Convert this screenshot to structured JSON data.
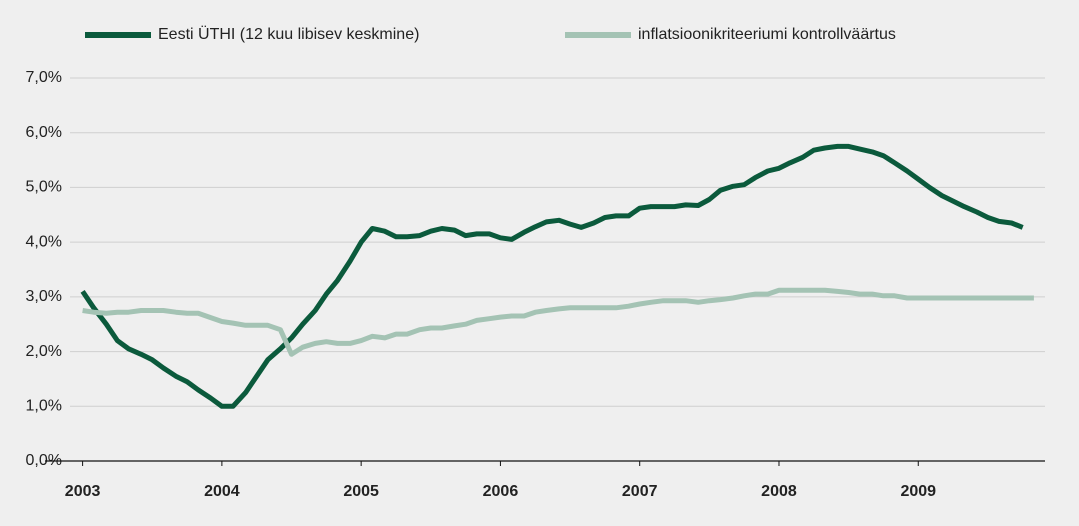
{
  "chart_data": {
    "type": "line",
    "x": [
      2003,
      2003.08,
      2003.17,
      2003.25,
      2003.33,
      2003.42,
      2003.5,
      2003.58,
      2003.67,
      2003.75,
      2003.83,
      2003.92,
      2004,
      2004.08,
      2004.17,
      2004.25,
      2004.33,
      2004.42,
      2004.5,
      2004.58,
      2004.67,
      2004.75,
      2004.83,
      2004.92,
      2005,
      2005.08,
      2005.17,
      2005.25,
      2005.33,
      2005.42,
      2005.5,
      2005.58,
      2005.67,
      2005.75,
      2005.83,
      2005.92,
      2006,
      2006.08,
      2006.17,
      2006.25,
      2006.33,
      2006.42,
      2006.5,
      2006.58,
      2006.67,
      2006.75,
      2006.83,
      2006.92,
      2007,
      2007.08,
      2007.17,
      2007.25,
      2007.33,
      2007.42,
      2007.5,
      2007.58,
      2007.67,
      2007.75,
      2007.83,
      2007.92,
      2008,
      2008.08,
      2008.17,
      2008.25,
      2008.33,
      2008.42,
      2008.5,
      2008.58,
      2008.67,
      2008.75,
      2008.83,
      2008.92,
      2009,
      2009.08,
      2009.17,
      2009.25,
      2009.33,
      2009.42,
      2009.5,
      2009.58,
      2009.67,
      2009.75,
      2009.83
    ],
    "series": [
      {
        "name": "Eesti ÜTHI (12 kuu libisev keskmine)",
        "color": "#0b5a3c",
        "values": [
          3.1,
          2.8,
          2.5,
          2.2,
          2.05,
          1.95,
          1.85,
          1.7,
          1.55,
          1.45,
          1.3,
          1.15,
          1.0,
          1.0,
          1.25,
          1.55,
          1.85,
          2.05,
          2.25,
          2.5,
          2.75,
          3.05,
          3.3,
          3.65,
          4.0,
          4.25,
          4.2,
          4.1,
          4.1,
          4.12,
          4.2,
          4.25,
          4.22,
          4.12,
          4.15,
          4.15,
          4.08,
          4.05,
          4.18,
          4.28,
          4.37,
          4.4,
          4.33,
          4.27,
          4.35,
          4.45,
          4.48,
          4.48,
          4.62,
          4.65,
          4.65,
          4.65,
          4.68,
          4.67,
          4.78,
          4.95,
          5.02,
          5.05,
          5.18,
          5.3,
          5.35,
          5.45,
          5.55,
          5.68,
          5.72,
          5.75,
          5.75,
          5.7,
          5.65,
          5.58,
          5.45,
          5.3,
          5.15,
          5.0,
          4.85,
          4.75,
          4.65,
          4.55,
          4.45,
          4.38,
          4.35,
          4.27,
          null
        ]
      },
      {
        "name": "inflatsioonikriteeriumi kontrollväärtus",
        "color": "#a4c3b4",
        "values": [
          2.75,
          2.72,
          2.7,
          2.72,
          2.72,
          2.75,
          2.75,
          2.75,
          2.72,
          2.7,
          2.7,
          2.62,
          2.55,
          2.52,
          2.48,
          2.48,
          2.48,
          2.4,
          1.95,
          2.08,
          2.15,
          2.18,
          2.15,
          2.15,
          2.2,
          2.28,
          2.25,
          2.32,
          2.32,
          2.4,
          2.43,
          2.43,
          2.47,
          2.5,
          2.57,
          2.6,
          2.63,
          2.65,
          2.65,
          2.72,
          2.75,
          2.78,
          2.8,
          2.8,
          2.8,
          2.8,
          2.8,
          2.83,
          2.87,
          2.9,
          2.93,
          2.93,
          2.93,
          2.9,
          2.93,
          2.95,
          2.98,
          3.02,
          3.05,
          3.05,
          3.12,
          3.12,
          3.12,
          3.12,
          3.12,
          3.1,
          3.08,
          3.05,
          3.05,
          3.02,
          3.02,
          2.98,
          2.98,
          2.98,
          2.98,
          2.98,
          2.98,
          2.98,
          2.98,
          2.98,
          2.98,
          2.98,
          2.98
        ]
      }
    ],
    "xlim": [
      2002.73,
      2009.91
    ],
    "xticks": [
      2003,
      2004,
      2005,
      2006,
      2007,
      2008,
      2009
    ],
    "ylim": [
      0,
      7
    ],
    "yticks": [
      {
        "value": 0,
        "label": "0,0%"
      },
      {
        "value": 1,
        "label": "1,0%"
      },
      {
        "value": 2,
        "label": "2,0%"
      },
      {
        "value": 3,
        "label": "3,0%"
      },
      {
        "value": 4,
        "label": "4,0%"
      },
      {
        "value": 5,
        "label": "5,0%"
      },
      {
        "value": 6,
        "label": "6,0%"
      },
      {
        "value": 7,
        "label": "7,0%"
      }
    ],
    "grid": true,
    "legend": "top"
  }
}
